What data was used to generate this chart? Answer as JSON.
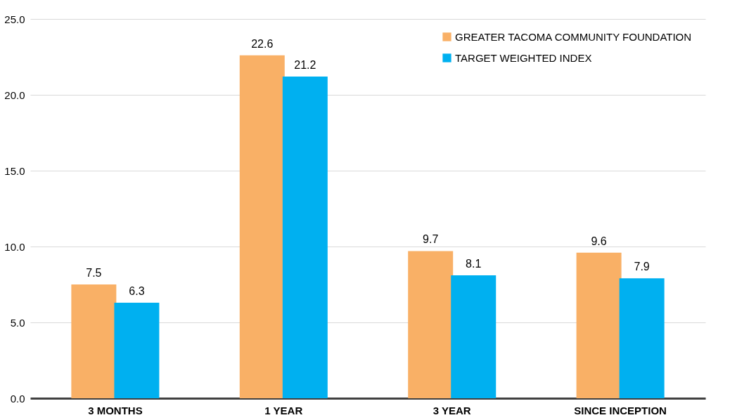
{
  "chart_data": {
    "type": "bar",
    "categories": [
      "3 MONTHS",
      "1 YEAR",
      "3 YEAR",
      "SINCE INCEPTION"
    ],
    "series": [
      {
        "name": "GREATER TACOMA COMMUNITY FOUNDATION",
        "color": "#f9b066",
        "values": [
          7.5,
          22.6,
          9.7,
          9.6
        ]
      },
      {
        "name": "TARGET WEIGHTED INDEX",
        "color": "#00b0f0",
        "values": [
          6.3,
          21.2,
          8.1,
          7.9
        ]
      }
    ],
    "ylim": [
      0,
      25
    ],
    "yticks": [
      {
        "value": 0,
        "label": "0.0"
      },
      {
        "value": 5,
        "label": "5.0"
      },
      {
        "value": 10,
        "label": "10.0"
      },
      {
        "value": 15,
        "label": "15.0"
      },
      {
        "value": 20,
        "label": "20.0"
      },
      {
        "value": 25,
        "label": "25.0"
      }
    ],
    "grid": "y",
    "legend": "top right",
    "data_labels": true
  }
}
